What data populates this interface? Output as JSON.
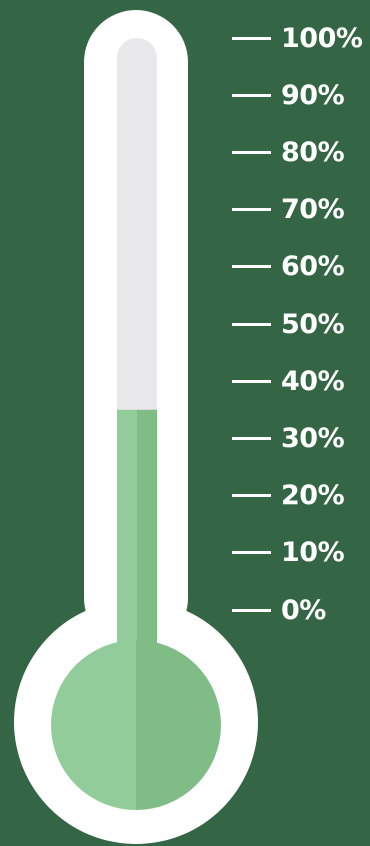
{
  "thermometer": {
    "fill_level_percent": 35,
    "colors": {
      "background": "#346544",
      "casing": "#ffffff",
      "empty_tube": "#e8e8ea",
      "fill_light": "#92cc9a",
      "fill_dark": "#7fbc86"
    }
  },
  "scale": {
    "labels": [
      "100%",
      "90%",
      "80%",
      "70%",
      "60%",
      "50%",
      "40%",
      "30%",
      "20%",
      "10%",
      "0%"
    ]
  }
}
